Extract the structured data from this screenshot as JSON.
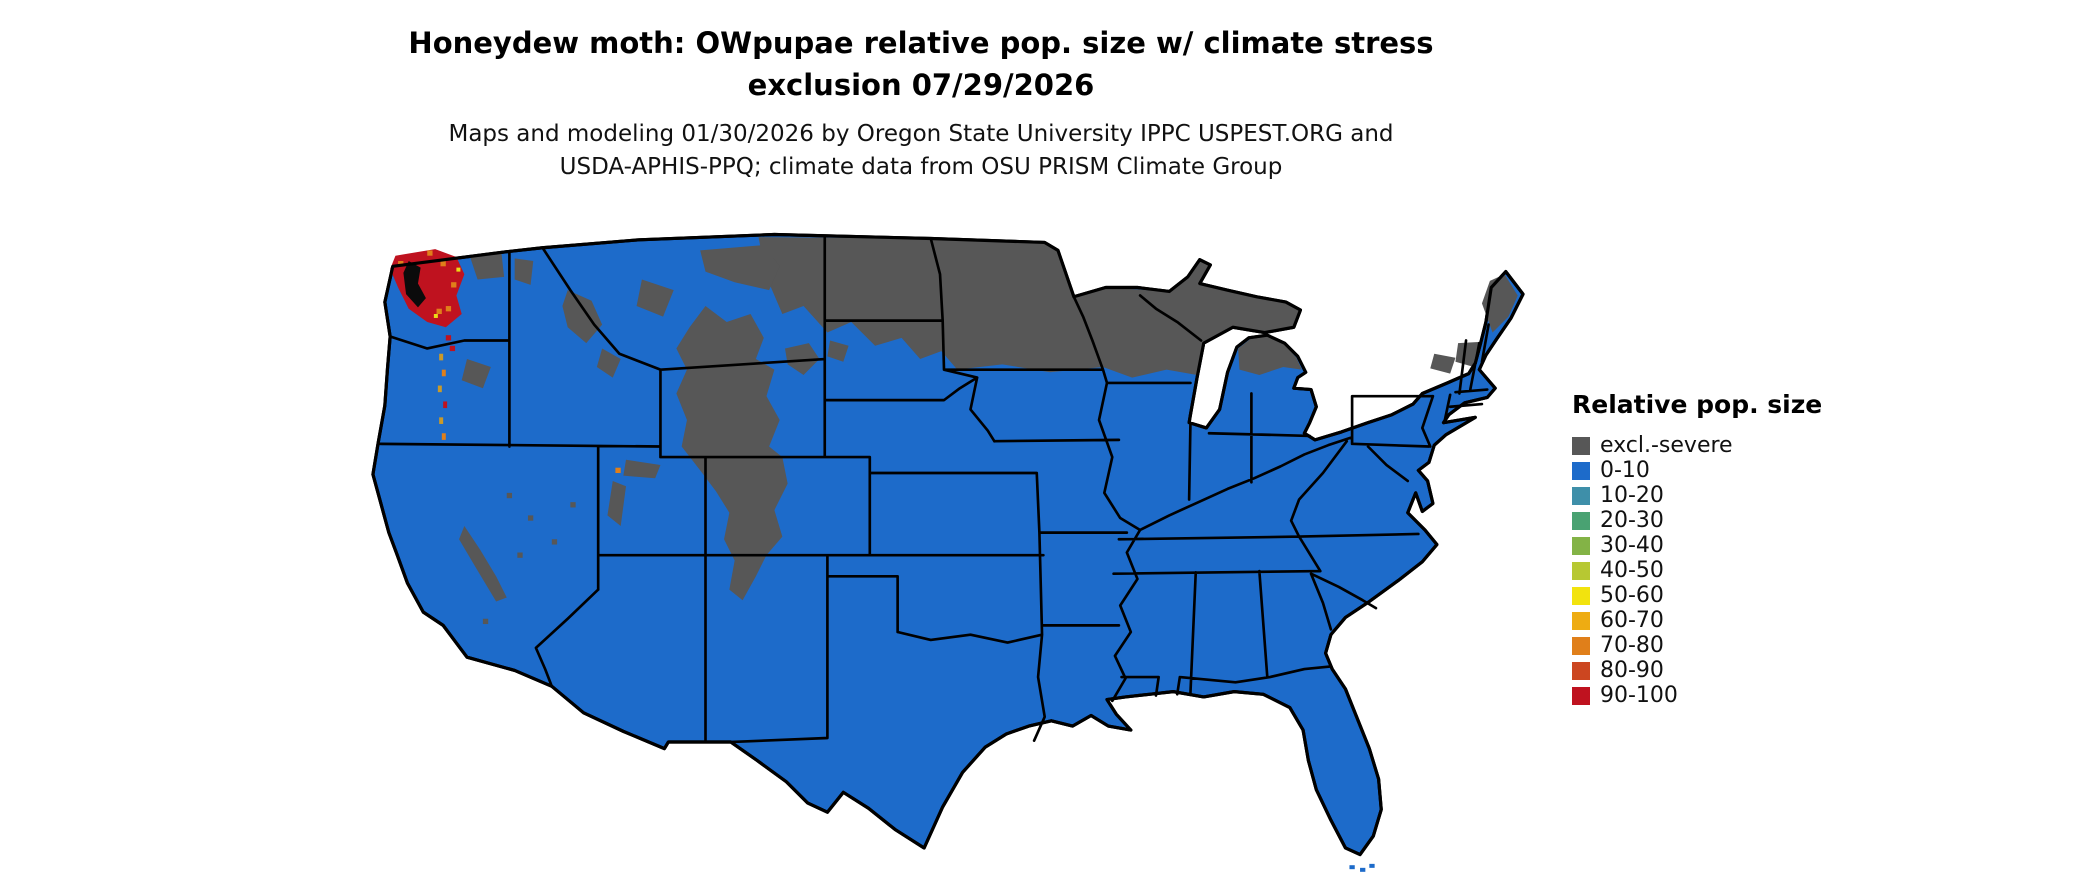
{
  "title": {
    "line1": "Honeydew moth: OWpupae relative pop. size w/ climate stress",
    "line2": "exclusion 07/29/2026"
  },
  "subtitle": {
    "line1": "Maps and modeling 01/30/2026 by Oregon State University IPPC USPEST.ORG and",
    "line2": "USDA-APHIS-PPQ; climate data from OSU PRISM Climate Group"
  },
  "map": {
    "region": "Contiguous United States",
    "type": "choropleth",
    "dominant_class": "0-10",
    "excluded_class": "excl.-severe",
    "high_value_area": "western Washington",
    "colors": {
      "background": "#ffffff",
      "state_borders": "#000000"
    }
  },
  "legend": {
    "title": "Relative pop. size",
    "entries": [
      {
        "label": "excl.-severe",
        "color": "#575757"
      },
      {
        "label": "0-10",
        "color": "#1d6bca"
      },
      {
        "label": "10-20",
        "color": "#3e8fa9"
      },
      {
        "label": "20-30",
        "color": "#49a272"
      },
      {
        "label": "30-40",
        "color": "#83b346"
      },
      {
        "label": "40-50",
        "color": "#b7c832"
      },
      {
        "label": "50-60",
        "color": "#f2e30e"
      },
      {
        "label": "60-70",
        "color": "#eeac12"
      },
      {
        "label": "70-80",
        "color": "#e07f1a"
      },
      {
        "label": "80-90",
        "color": "#cc4620"
      },
      {
        "label": "90-100",
        "color": "#bf121f"
      }
    ]
  }
}
